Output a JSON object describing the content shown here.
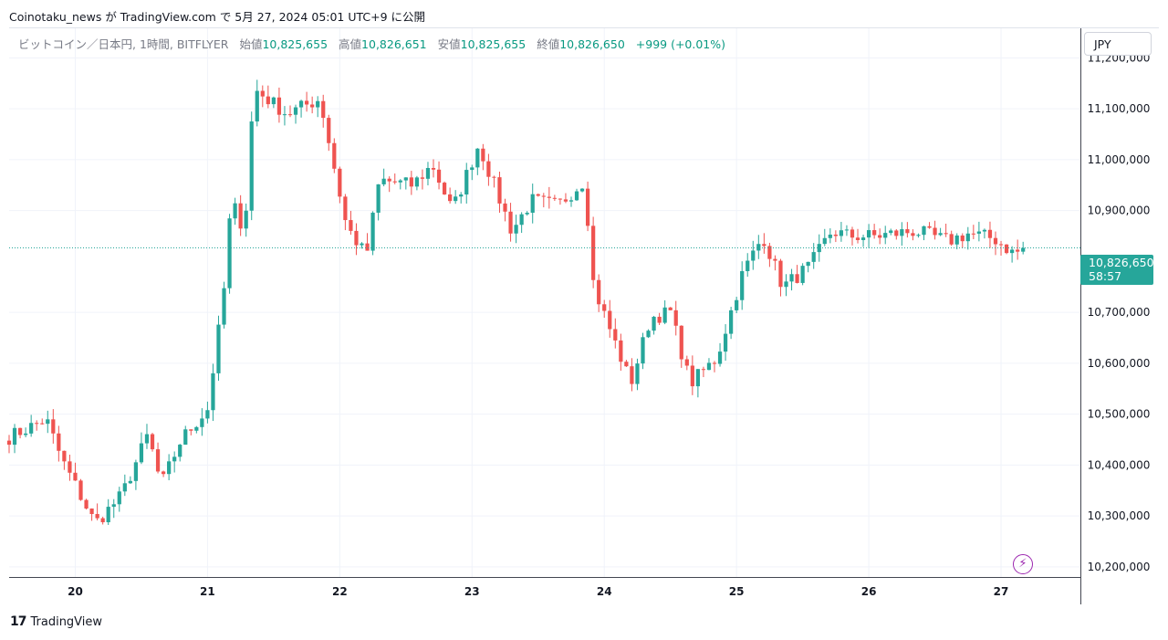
{
  "caption": "Coinotaku_news が TradingView.com で 5月 27, 2024 05:01 UTC+9 に公開",
  "legend": {
    "symbol": "ビットコイン／日本円, 1時間, BITFLYER",
    "open_label": "始値",
    "open": "10,825,655",
    "high_label": "高値",
    "high": "10,826,651",
    "low_label": "安値",
    "low": "10,825,655",
    "close_label": "終値",
    "close": "10,826,650",
    "change": "+999 (+0.01%)"
  },
  "currency": "JPY",
  "last_price": {
    "price": "10,826,650",
    "countdown": "58:57"
  },
  "footer": {
    "logo": "17",
    "brand": "TradingView"
  },
  "icons": {
    "flash": "lightning-icon"
  },
  "colors": {
    "up": "#26a69a",
    "down": "#ef5350",
    "grid": "#f0f3fa",
    "axis_text": "#131722",
    "last_line": "#26a69a"
  },
  "chart_data": {
    "type": "candlestick",
    "y_ticks": [
      {
        "value": 11200000,
        "label": "11,200,000"
      },
      {
        "value": 11100000,
        "label": "11,100,000"
      },
      {
        "value": 11000000,
        "label": "11,000,000"
      },
      {
        "value": 10900000,
        "label": "10,900,000"
      },
      {
        "value": 10700000,
        "label": "10,700,000"
      },
      {
        "value": 10600000,
        "label": "10,600,000"
      },
      {
        "value": 10500000,
        "label": "10,500,000"
      },
      {
        "value": 10400000,
        "label": "10,400,000"
      },
      {
        "value": 10300000,
        "label": "10,300,000"
      },
      {
        "value": 10200000,
        "label": "10,200,000"
      }
    ],
    "x_ticks": [
      {
        "day": 20,
        "label": "20"
      },
      {
        "day": 21,
        "label": "21"
      },
      {
        "day": 22,
        "label": "22"
      },
      {
        "day": 23,
        "label": "23"
      },
      {
        "day": 24,
        "label": "24"
      },
      {
        "day": 25,
        "label": "25"
      },
      {
        "day": 26,
        "label": "26"
      },
      {
        "day": 27,
        "label": "27"
      }
    ],
    "ylim": [
      10180000,
      11260000
    ],
    "xlim_days": [
      19.5,
      27.6
    ],
    "last_close": 10826650,
    "grid": true,
    "keypoints": [
      {
        "day": 19.5,
        "price": 10455000
      },
      {
        "day": 19.78,
        "price": 10490000
      },
      {
        "day": 19.9,
        "price": 10410000
      },
      {
        "day": 20.15,
        "price": 10285000
      },
      {
        "day": 20.35,
        "price": 10340000
      },
      {
        "day": 20.55,
        "price": 10460000
      },
      {
        "day": 20.65,
        "price": 10360000
      },
      {
        "day": 20.8,
        "price": 10450000
      },
      {
        "day": 21.0,
        "price": 10510000
      },
      {
        "day": 21.12,
        "price": 10730000
      },
      {
        "day": 21.18,
        "price": 10920000
      },
      {
        "day": 21.28,
        "price": 10860000
      },
      {
        "day": 21.35,
        "price": 11140000
      },
      {
        "day": 21.6,
        "price": 11090000
      },
      {
        "day": 21.85,
        "price": 11120000
      },
      {
        "day": 22.05,
        "price": 10870000
      },
      {
        "day": 22.2,
        "price": 10810000
      },
      {
        "day": 22.3,
        "price": 10960000
      },
      {
        "day": 22.55,
        "price": 10950000
      },
      {
        "day": 22.7,
        "price": 10990000
      },
      {
        "day": 22.85,
        "price": 10900000
      },
      {
        "day": 23.05,
        "price": 11030000
      },
      {
        "day": 23.3,
        "price": 10860000
      },
      {
        "day": 23.45,
        "price": 10920000
      },
      {
        "day": 23.65,
        "price": 10910000
      },
      {
        "day": 23.85,
        "price": 10960000
      },
      {
        "day": 23.92,
        "price": 10750000
      },
      {
        "day": 24.2,
        "price": 10560000
      },
      {
        "day": 24.35,
        "price": 10690000
      },
      {
        "day": 24.5,
        "price": 10700000
      },
      {
        "day": 24.65,
        "price": 10560000
      },
      {
        "day": 24.85,
        "price": 10610000
      },
      {
        "day": 25.05,
        "price": 10780000
      },
      {
        "day": 25.2,
        "price": 10850000
      },
      {
        "day": 25.35,
        "price": 10750000
      },
      {
        "day": 25.55,
        "price": 10790000
      },
      {
        "day": 25.72,
        "price": 10860000
      },
      {
        "day": 25.85,
        "price": 10850000
      },
      {
        "day": 26.05,
        "price": 10850000
      },
      {
        "day": 26.35,
        "price": 10860000
      },
      {
        "day": 26.6,
        "price": 10840000
      },
      {
        "day": 26.75,
        "price": 10855000
      },
      {
        "day": 26.95,
        "price": 10845000
      },
      {
        "day": 27.1,
        "price": 10815000
      },
      {
        "day": 27.18,
        "price": 10826650
      }
    ]
  }
}
